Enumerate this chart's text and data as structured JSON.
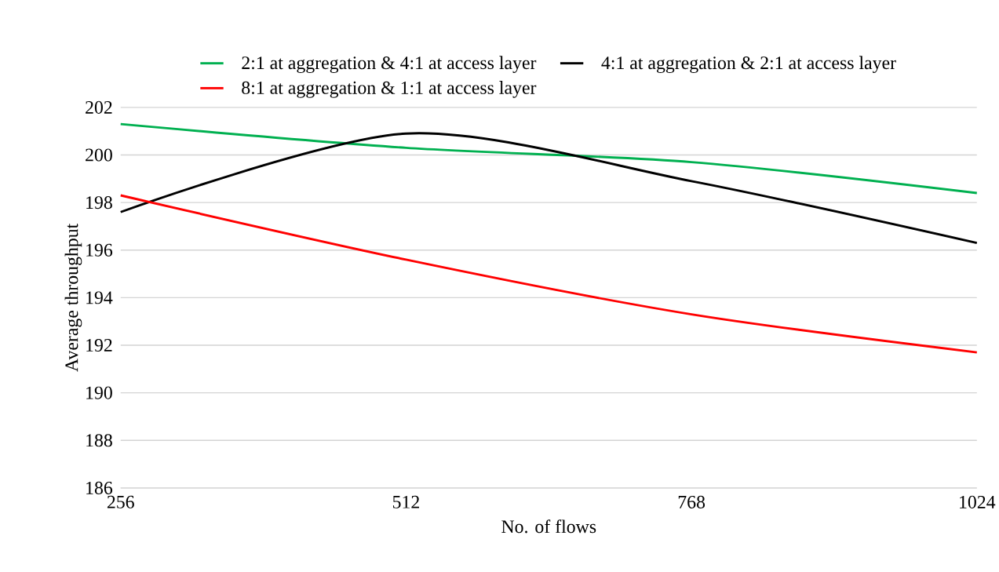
{
  "chart_data": {
    "type": "line",
    "xlabel": "No. of flows",
    "ylabel": "Average throughput",
    "categories": [
      "256",
      "512",
      "768",
      "1024"
    ],
    "series": [
      {
        "name": "2:1 at aggregation & 4:1 at access layer",
        "color": "#00b050",
        "values": [
          201.3,
          200.3,
          199.7,
          198.4
        ]
      },
      {
        "name": "4:1 at aggregation & 2:1 at access layer",
        "color": "#000000",
        "values": [
          197.6,
          200.9,
          198.9,
          196.3
        ]
      },
      {
        "name": "8:1 at aggregation & 1:1 at access layer",
        "color": "#ff0000",
        "values": [
          198.3,
          195.6,
          193.3,
          191.7
        ]
      }
    ],
    "ylim": [
      186,
      202
    ],
    "yticks": [
      186,
      188,
      190,
      192,
      194,
      196,
      198,
      200,
      202
    ],
    "grid": "y",
    "legend": "top",
    "marker": "none",
    "line_style": "solid"
  }
}
